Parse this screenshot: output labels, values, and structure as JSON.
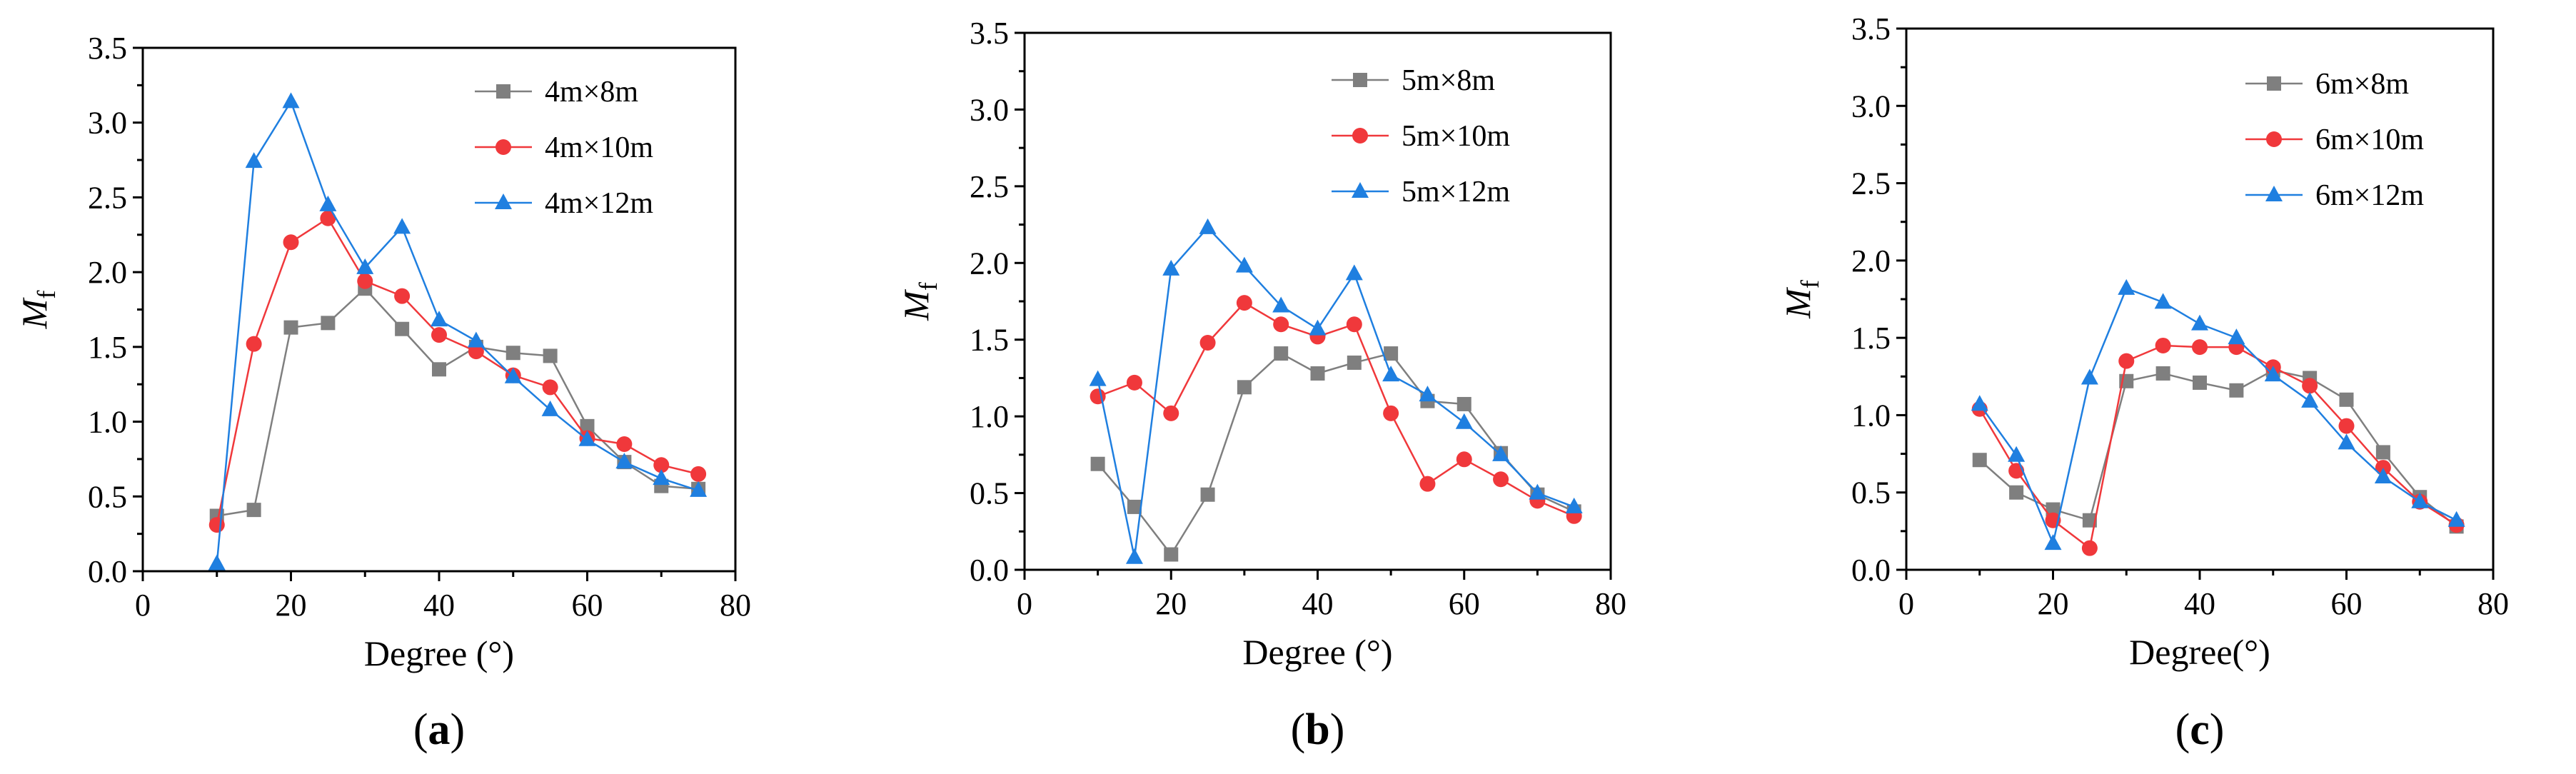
{
  "chart_data": [
    {
      "type": "line",
      "panel_label": {
        "open": "(",
        "letter": "a",
        "close": ")"
      },
      "xlabel": "Degree (°)",
      "ylabel": {
        "main": "M",
        "sub": "f"
      },
      "xlim": [
        0,
        80
      ],
      "ylim": [
        0,
        3.5
      ],
      "xticks": [
        "0",
        "20",
        "40",
        "60",
        "80"
      ],
      "yticks": [
        "0.0",
        "0.5",
        "1.0",
        "1.5",
        "2.0",
        "2.5",
        "3.0",
        "3.5"
      ],
      "legend_position": "top-right",
      "x": [
        10,
        15,
        20,
        25,
        30,
        35,
        40,
        45,
        50,
        55,
        60,
        65,
        70,
        75
      ],
      "series": [
        {
          "name": "4m×8m",
          "color": "#7f7f7f",
          "marker": "square",
          "values": [
            0.37,
            0.41,
            1.63,
            1.66,
            1.89,
            1.62,
            1.35,
            1.5,
            1.46,
            1.44,
            0.97,
            0.73,
            0.57,
            0.55
          ]
        },
        {
          "name": "4m×10m",
          "color": "#f0383b",
          "marker": "circle",
          "values": [
            0.31,
            1.52,
            2.2,
            2.36,
            1.94,
            1.84,
            1.58,
            1.47,
            1.31,
            1.23,
            0.89,
            0.85,
            0.71,
            0.65
          ]
        },
        {
          "name": "4m×12m",
          "color": "#1f7fe0",
          "marker": "triangle",
          "values": [
            0.05,
            2.74,
            3.14,
            2.45,
            2.03,
            2.3,
            1.68,
            1.54,
            1.3,
            1.08,
            0.88,
            0.73,
            0.62,
            0.54
          ]
        }
      ]
    },
    {
      "type": "line",
      "panel_label": {
        "open": "(",
        "letter": "b",
        "close": ")"
      },
      "xlabel": "Degree (°)",
      "ylabel": {
        "main": "M",
        "sub": "f"
      },
      "xlim": [
        0,
        80
      ],
      "ylim": [
        0,
        3.5
      ],
      "xticks": [
        "0",
        "20",
        "40",
        "60",
        "80"
      ],
      "yticks": [
        "0.0",
        "0.5",
        "1.0",
        "1.5",
        "2.0",
        "2.5",
        "3.0",
        "3.5"
      ],
      "legend_position": "top-right",
      "x": [
        10,
        15,
        20,
        25,
        30,
        35,
        40,
        45,
        50,
        55,
        60,
        65,
        70,
        75
      ],
      "series": [
        {
          "name": "5m×8m",
          "color": "#7f7f7f",
          "marker": "square",
          "values": [
            0.69,
            0.41,
            0.1,
            0.49,
            1.19,
            1.41,
            1.28,
            1.35,
            1.41,
            1.1,
            1.08,
            0.76,
            0.49,
            0.38
          ]
        },
        {
          "name": "5m×10m",
          "color": "#f0383b",
          "marker": "circle",
          "values": [
            1.13,
            1.22,
            1.02,
            1.48,
            1.74,
            1.6,
            1.52,
            1.6,
            1.02,
            0.56,
            0.72,
            0.59,
            0.45,
            0.35
          ]
        },
        {
          "name": "5m×12m",
          "color": "#1f7fe0",
          "marker": "triangle",
          "values": [
            1.24,
            0.08,
            1.96,
            2.23,
            1.98,
            1.72,
            1.57,
            1.93,
            1.27,
            1.14,
            0.96,
            0.75,
            0.5,
            0.41
          ]
        }
      ]
    },
    {
      "type": "line",
      "panel_label": {
        "open": "(",
        "letter": "c",
        "close": ")"
      },
      "xlabel": "Degree(°)",
      "ylabel": {
        "main": "M",
        "sub": "f"
      },
      "xlim": [
        0,
        80
      ],
      "ylim": [
        0,
        3.5
      ],
      "xticks": [
        "0",
        "20",
        "40",
        "60",
        "80"
      ],
      "yticks": [
        "0.0",
        "0.5",
        "1.0",
        "1.5",
        "2.0",
        "2.5",
        "3.0",
        "3.5"
      ],
      "legend_position": "top-right",
      "x": [
        10,
        15,
        20,
        25,
        30,
        35,
        40,
        45,
        50,
        55,
        60,
        65,
        70,
        75
      ],
      "series": [
        {
          "name": "6m×8m",
          "color": "#7f7f7f",
          "marker": "square",
          "values": [
            0.71,
            0.5,
            0.39,
            0.32,
            1.22,
            1.27,
            1.21,
            1.16,
            1.29,
            1.24,
            1.1,
            0.76,
            0.47,
            0.28
          ]
        },
        {
          "name": "6m×10m",
          "color": "#f0383b",
          "marker": "circle",
          "values": [
            1.04,
            0.64,
            0.32,
            0.14,
            1.35,
            1.45,
            1.44,
            1.44,
            1.31,
            1.19,
            0.93,
            0.66,
            0.44,
            0.29
          ]
        },
        {
          "name": "6m×12m",
          "color": "#1f7fe0",
          "marker": "triangle",
          "values": [
            1.07,
            0.74,
            0.17,
            1.24,
            1.82,
            1.73,
            1.59,
            1.5,
            1.26,
            1.09,
            0.82,
            0.6,
            0.44,
            0.32
          ]
        }
      ]
    }
  ]
}
